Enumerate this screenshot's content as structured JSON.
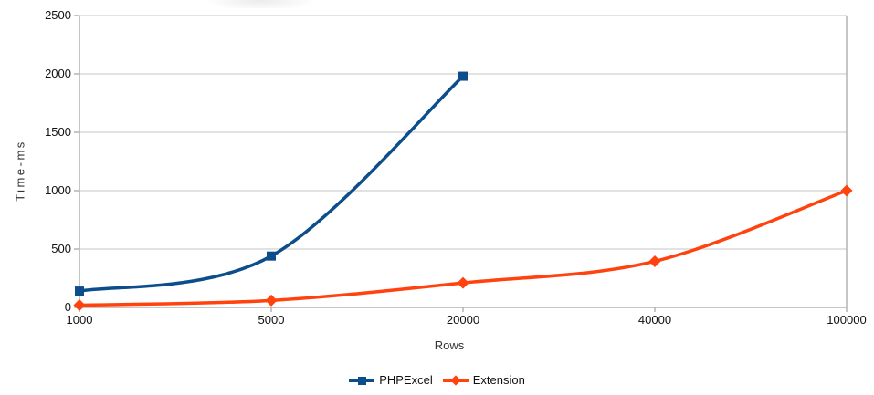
{
  "chart_data": {
    "type": "line",
    "title": "",
    "xlabel": "Rows",
    "ylabel": "Time-ms",
    "categories": [
      "1000",
      "5000",
      "20000",
      "40000",
      "100000"
    ],
    "series": [
      {
        "name": "PHPExcel",
        "color": "#0c4d8c",
        "marker": "square",
        "values": [
          140,
          440,
          1980,
          null,
          null
        ]
      },
      {
        "name": "Extension",
        "color": "#ff420e",
        "marker": "diamond",
        "values": [
          20,
          60,
          210,
          395,
          1000
        ]
      }
    ],
    "ylim": [
      0,
      2500
    ],
    "yticks": [
      0,
      500,
      1000,
      1500,
      2000,
      2500
    ],
    "grid": "horizontal-only",
    "smooth_lines": true,
    "legend_position": "bottom-center",
    "axis_color": "#b3b3b3",
    "grid_color": "#d9d9d9",
    "tick_label_color": "#111111",
    "axis_title_color": "#333333",
    "background": "#ffffff"
  }
}
